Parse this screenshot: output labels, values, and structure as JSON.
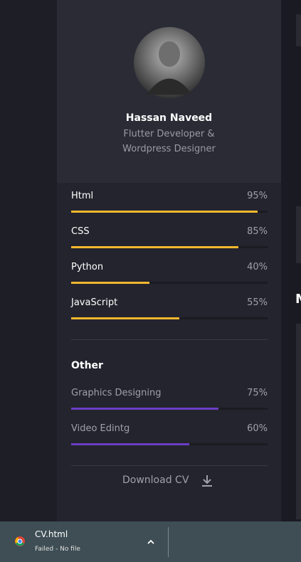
{
  "profile": {
    "name": "Hassan Naveed",
    "role_line1": "Flutter Developer &",
    "role_line2": "Wordpress Designer"
  },
  "skills": [
    {
      "name": "Html",
      "value": 95,
      "label": "95%"
    },
    {
      "name": "CSS",
      "value": 85,
      "label": "85%"
    },
    {
      "name": "Python",
      "value": 40,
      "label": "40%"
    },
    {
      "name": "JavaScript",
      "value": 55,
      "label": "55%"
    }
  ],
  "other": {
    "title": "Other",
    "skills": [
      {
        "name": "Graphics Designing",
        "value": 75,
        "label": "75%"
      },
      {
        "name": "Video Edintg",
        "value": 60,
        "label": "60%"
      }
    ]
  },
  "download_button": "Download CV",
  "side_text": "M",
  "download_bar": {
    "file": "CV.html",
    "status": "Failed - No file"
  }
}
